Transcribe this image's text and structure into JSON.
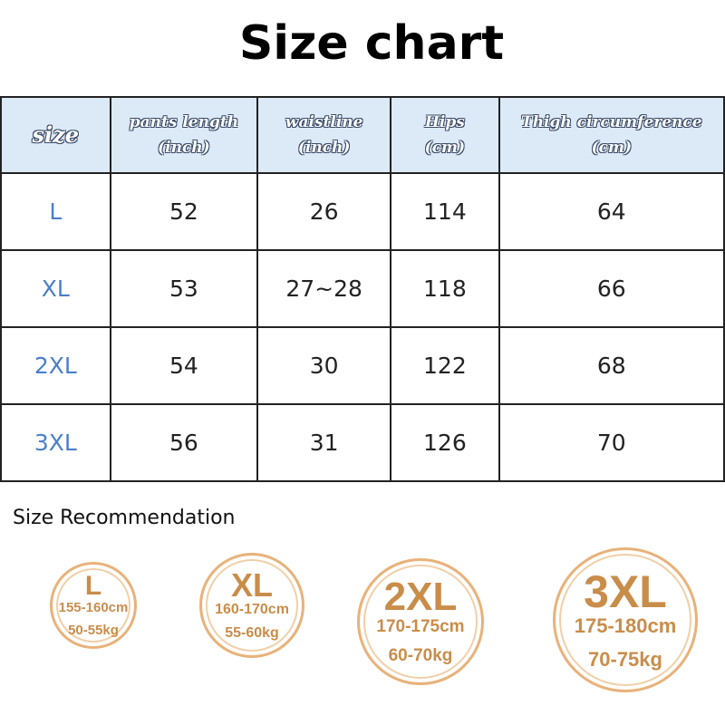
{
  "title": "Size chart",
  "table": {
    "header": [
      {
        "label": "size"
      },
      {
        "label": "pants length",
        "unit": "(inch)"
      },
      {
        "label": "waistline",
        "unit": "(inch)"
      },
      {
        "label": "Hips",
        "unit": "(cm)"
      },
      {
        "label": "Thigh circumference",
        "unit": "(cm)"
      }
    ],
    "rows": [
      [
        "L",
        52,
        26,
        114,
        64
      ],
      [
        "XL",
        53,
        "27~28",
        118,
        66
      ],
      [
        "2XL",
        54,
        30,
        122,
        68
      ],
      [
        "3XL",
        56,
        31,
        126,
        70
      ]
    ]
  },
  "recommendation": {
    "title": "Size Recommendation",
    "items": [
      {
        "size": "L",
        "height": "155-160cm",
        "weight": "50-55kg"
      },
      {
        "size": "XL",
        "height": "160-170cm",
        "weight": "55-60kg"
      },
      {
        "size": "2XL",
        "height": "170-175cm",
        "weight": "60-70kg"
      },
      {
        "size": "3XL",
        "height": "175-180cm",
        "weight": "70-75kg"
      }
    ]
  }
}
